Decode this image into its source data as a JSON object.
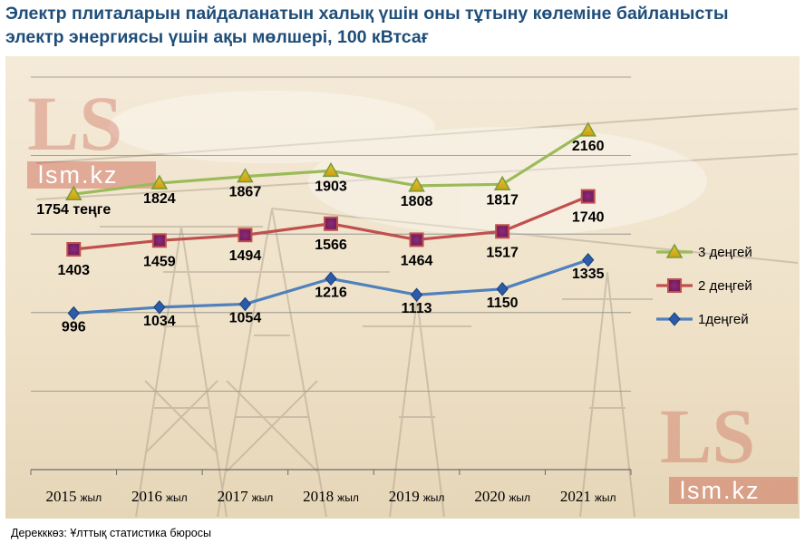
{
  "title_line1": "Электр плиталарын пайдаланатын халық үшін оны тұтыну көлеміне байланысты",
  "title_line2": "электр энергиясы үшін ақы мөлшері, 100 кВтсағ",
  "source": "Дерекккөз: Ұлттық статистика бюросы",
  "watermark": {
    "logo": "LS",
    "site": "lsm.kz"
  },
  "chart_data": {
    "type": "line",
    "categories": [
      "2015",
      "2016",
      "2017",
      "2018",
      "2019",
      "2020",
      "2021"
    ],
    "category_suffix": "жыл",
    "ylim": [
      0,
      2500
    ],
    "grid": true,
    "legend_position": "right",
    "series": [
      {
        "name": "3 деңгей",
        "values": [
          1754,
          1824,
          1867,
          1903,
          1808,
          1817,
          2160
        ],
        "color": "#9bbb59",
        "marker": "triangle",
        "labels": [
          "1754 теңге",
          "1824",
          "1867",
          "1903",
          "1808",
          "1817",
          "2160"
        ]
      },
      {
        "name": "2 деңгей",
        "values": [
          1403,
          1459,
          1494,
          1566,
          1464,
          1517,
          1740
        ],
        "color": "#c0504d",
        "marker": "square",
        "labels": [
          "1403",
          "1459",
          "1494",
          "1566",
          "1464",
          "1517",
          "1740"
        ]
      },
      {
        "name": "1деңгей",
        "values": [
          996,
          1034,
          1054,
          1216,
          1113,
          1150,
          1335
        ],
        "color": "#4f81bd",
        "marker": "diamond",
        "labels": [
          "996",
          "1034",
          "1054",
          "1216",
          "1113",
          "1150",
          "1335"
        ]
      }
    ]
  }
}
